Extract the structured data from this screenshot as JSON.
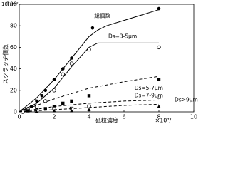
{
  "chart_data": {
    "type": "scatter",
    "y_unit": "10⁷/m²",
    "y_label": "スクラッチ個数",
    "x_label": "砥粒濃度",
    "x_unit": "×10⁷/l",
    "xlim": [
      0,
      10
    ],
    "xticks": [
      0,
      2,
      4,
      6,
      8,
      10
    ],
    "ylim": [
      0,
      100
    ],
    "yticks": [
      0,
      20,
      40,
      60,
      80,
      100
    ],
    "series": [
      {
        "name": "総個数",
        "color": "#000000",
        "marker": "circle-filled",
        "line": "solid",
        "x": [
          0.2,
          0.5,
          0.7,
          1,
          1.3,
          1.5,
          2,
          2.5,
          3,
          4.2,
          8
        ],
        "values": [
          1,
          3,
          5,
          10,
          15,
          20,
          30,
          40,
          50,
          78,
          96
        ],
        "curve": {
          "x": [
            0,
            1,
            2,
            3,
            4,
            4.5,
            5,
            6,
            7,
            8
          ],
          "values": [
            0,
            13,
            30,
            50,
            70,
            76,
            80,
            85,
            90,
            95
          ]
        }
      },
      {
        "name": "Ds=3-5μm",
        "color": "#000000",
        "marker": "circle-open",
        "line": "solid",
        "x": [
          0.2,
          0.5,
          1,
          1.5,
          2,
          2.5,
          3,
          4,
          8
        ],
        "values": [
          0,
          2,
          5,
          10,
          20,
          35,
          45,
          58,
          60
        ],
        "curve": {
          "x": [
            0,
            1,
            2,
            3,
            4,
            4.5,
            5,
            6,
            7,
            8
          ],
          "values": [
            0,
            8,
            22,
            42,
            60,
            64,
            64,
            64,
            64,
            64
          ]
        }
      },
      {
        "name": "Ds=5-7μm",
        "color": "#000000",
        "marker": "square-filled",
        "line": "dashed",
        "x": [
          0.5,
          1,
          1.5,
          2,
          2.5,
          3,
          4,
          8
        ],
        "values": [
          1,
          2,
          3,
          5,
          8,
          10,
          15,
          30
        ],
        "curve": {
          "x": [
            0,
            2,
            4,
            6,
            8
          ],
          "values": [
            0,
            12,
            22,
            28,
            33
          ]
        }
      },
      {
        "name": "Ds=7-9μm",
        "color": "#000000",
        "marker": "square-open",
        "line": "dashed",
        "x": [
          1,
          2,
          3,
          4,
          8
        ],
        "values": [
          1,
          3,
          3,
          5,
          14
        ],
        "curve": {
          "x": [
            0,
            2,
            4,
            6,
            8
          ],
          "values": [
            0,
            5,
            8,
            10,
            11
          ]
        }
      },
      {
        "name": "Ds>9μm",
        "color": "#000000",
        "marker": "triangle-filled",
        "line": "dashed",
        "x": [
          1,
          2,
          3,
          4,
          8
        ],
        "values": [
          0,
          1,
          1,
          2,
          5
        ],
        "curve": {
          "x": [
            0,
            2,
            4,
            6,
            8
          ],
          "values": [
            0,
            2,
            4,
            6,
            7
          ]
        }
      }
    ]
  }
}
